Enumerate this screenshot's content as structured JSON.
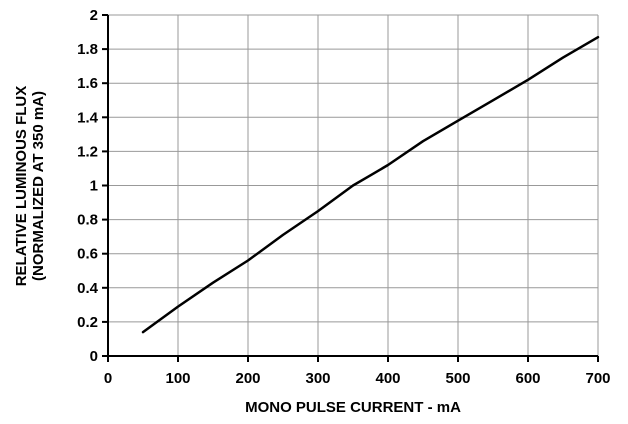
{
  "chart_data": {
    "type": "line",
    "title": "",
    "xlabel": "MONO PULSE CURRENT - mA",
    "ylabel_lines": [
      "RELATIVE LUMINOUS FLUX",
      "(NORMALIZED AT 350 mA)"
    ],
    "xlim": [
      0,
      700
    ],
    "ylim": [
      0,
      2
    ],
    "x_ticks": [
      0,
      100,
      200,
      300,
      400,
      500,
      600,
      700
    ],
    "y_ticks": [
      0,
      0.2,
      0.4,
      0.6,
      0.8,
      1,
      1.2,
      1.4,
      1.6,
      1.8,
      2
    ],
    "x_tick_labels": [
      "0",
      "100",
      "200",
      "300",
      "400",
      "500",
      "600",
      "700"
    ],
    "y_tick_labels": [
      "0",
      "0.2",
      "0.4",
      "0.6",
      "0.8",
      "1",
      "1.2",
      "1.4",
      "1.6",
      "1.8",
      "2"
    ],
    "grid": true,
    "series": [
      {
        "x": [
          50,
          100,
          150,
          200,
          250,
          300,
          350,
          375,
          400,
          450,
          500,
          550,
          600,
          650,
          700
        ],
        "y": [
          0.14,
          0.29,
          0.43,
          0.56,
          0.71,
          0.85,
          1.0,
          1.06,
          1.12,
          1.26,
          1.38,
          1.5,
          1.62,
          1.75,
          1.87
        ]
      }
    ],
    "colors": {
      "line": "#000000",
      "grid": "#999999",
      "axis": "#000000"
    }
  }
}
